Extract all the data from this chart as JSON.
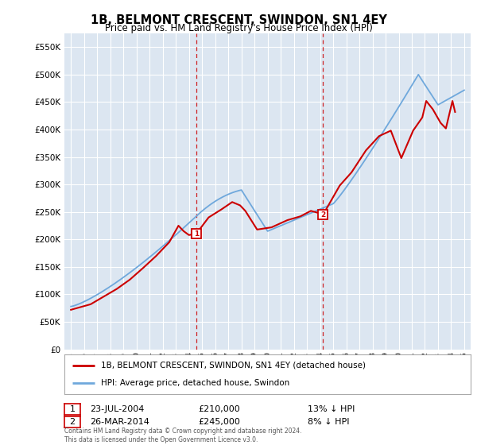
{
  "title": "1B, BELMONT CRESCENT, SWINDON, SN1 4EY",
  "subtitle": "Price paid vs. HM Land Registry's House Price Index (HPI)",
  "legend_line1": "1B, BELMONT CRESCENT, SWINDON, SN1 4EY (detached house)",
  "legend_line2": "HPI: Average price, detached house, Swindon",
  "ann1_label": "1",
  "ann1_date": "23-JUL-2004",
  "ann1_price": "£210,000",
  "ann1_pct": "13% ↓ HPI",
  "ann1_x": 2004.55,
  "ann1_y": 210000,
  "ann2_label": "2",
  "ann2_date": "26-MAR-2014",
  "ann2_price": "£245,000",
  "ann2_pct": "8% ↓ HPI",
  "ann2_x": 2014.23,
  "ann2_y": 245000,
  "footer": "Contains HM Land Registry data © Crown copyright and database right 2024.\nThis data is licensed under the Open Government Licence v3.0.",
  "ylim": [
    0,
    575000
  ],
  "yticks": [
    0,
    50000,
    100000,
    150000,
    200000,
    250000,
    300000,
    350000,
    400000,
    450000,
    500000,
    550000
  ],
  "xlim_start": 1994.5,
  "xlim_end": 2025.5,
  "hpi_color": "#6fa8dc",
  "sale_color": "#cc0000",
  "vline_color": "#cc0000",
  "background_plot": "#dce6f1",
  "background_fig": "#ffffff",
  "grid_color": "#ffffff"
}
